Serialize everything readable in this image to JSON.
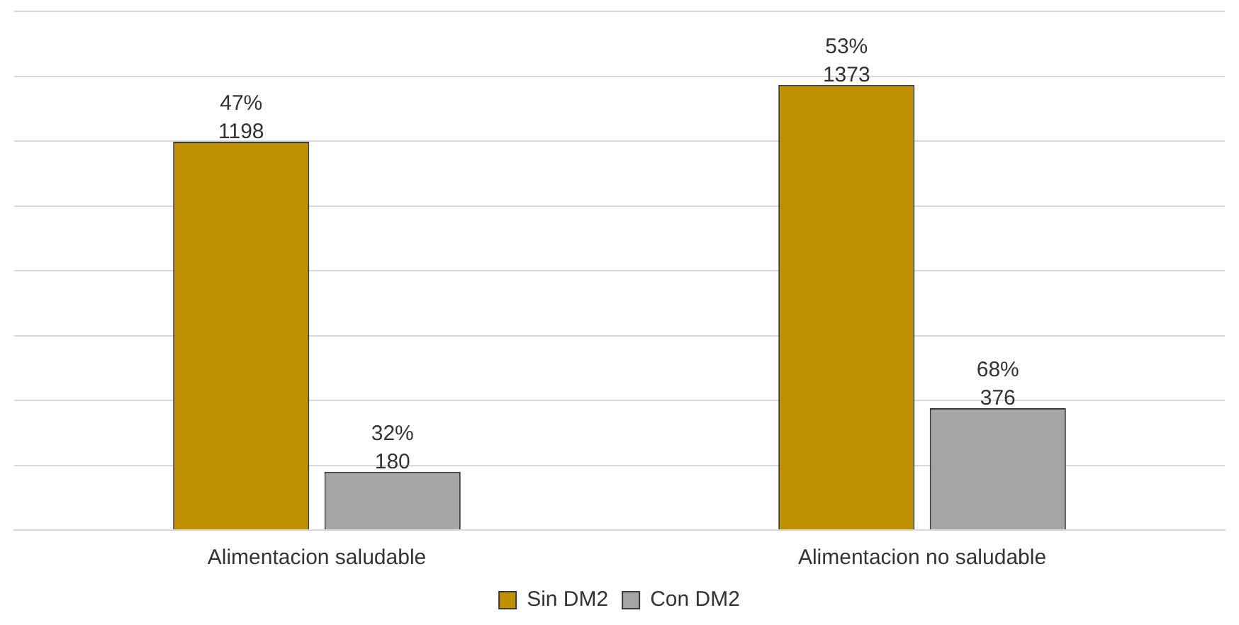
{
  "chart_data": {
    "type": "bar",
    "categories": [
      "Alimentacion saludable",
      "Alimentacion no saludable"
    ],
    "series": [
      {
        "name": "Sin DM2",
        "color": "#bf9000",
        "values": [
          1198,
          1373
        ],
        "value_labels": [
          "47%\n1198",
          "53%\n1373"
        ]
      },
      {
        "name": "Con DM2",
        "color": "#a6a6a6",
        "values": [
          180,
          376
        ],
        "value_labels": [
          "32%\n180",
          "68%\n376"
        ]
      }
    ],
    "ylim": [
      0,
      1600
    ],
    "yticks": [
      {
        "value": 0,
        "label": null
      },
      {
        "value": 200,
        "label": null
      },
      {
        "value": 400,
        "label": null
      },
      {
        "value": 600,
        "label": null
      },
      {
        "value": 800,
        "label": null
      },
      {
        "value": 1000,
        "label": null
      },
      {
        "value": 1200,
        "label": null
      },
      {
        "value": 1400,
        "label": null
      },
      {
        "value": 1600,
        "label": null
      }
    ],
    "grid": "y",
    "tick_labels": "x",
    "legend": "bottom"
  }
}
